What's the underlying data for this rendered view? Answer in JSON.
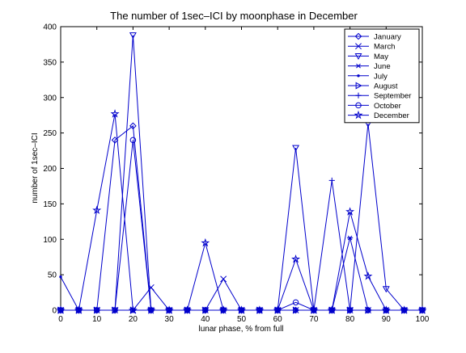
{
  "chart_data": {
    "type": "line",
    "title": "The number of 1sec–ICI by moonphase in December",
    "xlabel": "lunar phase, % from full",
    "ylabel": "number of 1sec–ICI",
    "xlim": [
      0,
      100
    ],
    "ylim": [
      0,
      400
    ],
    "xticks": [
      0,
      10,
      20,
      30,
      40,
      50,
      60,
      70,
      80,
      90,
      100
    ],
    "yticks": [
      0,
      50,
      100,
      150,
      200,
      250,
      300,
      350,
      400
    ],
    "grid": false,
    "legend_position": "top-right",
    "line_color": "#0000cc",
    "x": [
      0,
      5,
      10,
      15,
      20,
      25,
      30,
      35,
      40,
      45,
      50,
      55,
      60,
      65,
      70,
      75,
      80,
      85,
      90,
      95,
      100
    ],
    "series": [
      {
        "name": "January",
        "marker": "diamond",
        "values": [
          0,
          0,
          0,
          240,
          260,
          0,
          0,
          0,
          0,
          0,
          0,
          0,
          0,
          0,
          0,
          0,
          0,
          0,
          0,
          0,
          0
        ]
      },
      {
        "name": "March",
        "marker": "x",
        "values": [
          0,
          0,
          0,
          0,
          0,
          32,
          0,
          0,
          0,
          44,
          0,
          0,
          0,
          0,
          0,
          0,
          0,
          0,
          0,
          0,
          0
        ]
      },
      {
        "name": "May",
        "marker": "triangle-down",
        "values": [
          0,
          0,
          0,
          0,
          388,
          0,
          0,
          0,
          0,
          0,
          0,
          0,
          0,
          229,
          0,
          0,
          0,
          263,
          30,
          0,
          0
        ]
      },
      {
        "name": "June",
        "marker": "asterisk",
        "values": [
          0,
          0,
          0,
          0,
          0,
          0,
          0,
          0,
          0,
          0,
          0,
          0,
          0,
          0,
          0,
          0,
          102,
          0,
          0,
          0,
          0
        ]
      },
      {
        "name": "July",
        "marker": "point",
        "values": [
          47,
          0,
          0,
          0,
          0,
          0,
          0,
          0,
          0,
          0,
          0,
          0,
          0,
          0,
          0,
          0,
          0,
          0,
          0,
          0,
          0
        ]
      },
      {
        "name": "August",
        "marker": "triangle-right",
        "values": [
          0,
          0,
          0,
          0,
          0,
          0,
          0,
          0,
          0,
          0,
          0,
          0,
          0,
          0,
          0,
          0,
          0,
          0,
          0,
          0,
          0
        ]
      },
      {
        "name": "September",
        "marker": "plus",
        "values": [
          0,
          0,
          0,
          0,
          0,
          0,
          0,
          0,
          0,
          0,
          0,
          0,
          0,
          0,
          0,
          183,
          0,
          0,
          0,
          0,
          0
        ]
      },
      {
        "name": "October",
        "marker": "circle",
        "values": [
          0,
          0,
          0,
          0,
          240,
          0,
          0,
          0,
          0,
          0,
          0,
          0,
          0,
          11,
          0,
          0,
          0,
          0,
          0,
          0,
          0
        ]
      },
      {
        "name": "December",
        "marker": "star",
        "values": [
          0,
          0,
          141,
          277,
          0,
          0,
          0,
          0,
          95,
          0,
          0,
          0,
          0,
          72,
          0,
          0,
          139,
          48,
          0,
          0,
          0
        ]
      }
    ]
  }
}
